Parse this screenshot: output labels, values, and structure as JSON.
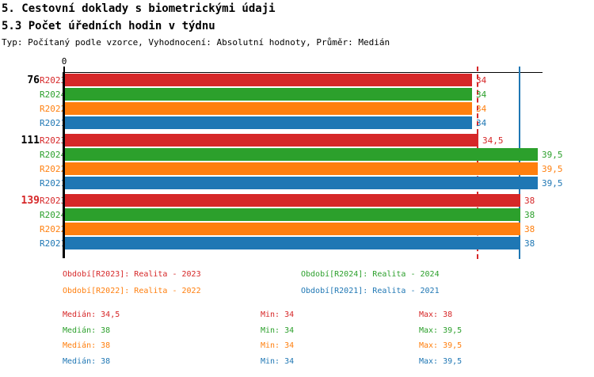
{
  "header": {
    "title": "5. Cestovní doklady s biometrickými údaji",
    "subtitle": "5.3 Počet úředních hodin v týdnu",
    "meta": "Typ: Počítaný podle vzorce, Vyhodnocení: Absolutní hodnoty, Průměr: Medián"
  },
  "chart_data": {
    "type": "bar",
    "orientation": "horizontal",
    "title": "5.3 Počet úředních hodin v týdnu",
    "xlabel": "",
    "ylabel": "",
    "xlim": [
      0,
      39.9
    ],
    "grid": false,
    "axis": {
      "origin_label": "0"
    },
    "series": [
      {
        "key": "R2023",
        "name": "Realita - 2023",
        "color": "#d62728"
      },
      {
        "key": "R2024",
        "name": "Realita - 2024",
        "color": "#2ca02c"
      },
      {
        "key": "R2022",
        "name": "Realita - 2022",
        "color": "#ff7f0e"
      },
      {
        "key": "R2021",
        "name": "Realita - 2021",
        "color": "#1f77b4"
      }
    ],
    "groups": [
      {
        "label": "76",
        "label_color": "#000000",
        "values": [
          34,
          34,
          34,
          34
        ]
      },
      {
        "label": "111",
        "label_color": "#000000",
        "values": [
          34.5,
          39.5,
          39.5,
          39.5
        ]
      },
      {
        "label": "139",
        "label_color": "#d62728",
        "values": [
          38,
          38,
          38,
          38
        ]
      }
    ],
    "reference_lines": [
      {
        "value": 34.5,
        "color": "#d62728",
        "style": "dashed"
      },
      {
        "value": 38,
        "color": "#1f77b4",
        "style": "solid"
      }
    ]
  },
  "legend": {
    "columns": [
      [
        {
          "label": "Období[R2023]: Realita - 2023",
          "color": "#d62728"
        },
        {
          "label": "Období[R2022]: Realita - 2022",
          "color": "#ff7f0e"
        }
      ],
      [
        {
          "label": "Období[R2024]: Realita - 2024",
          "color": "#2ca02c"
        },
        {
          "label": "Období[R2021]: Realita - 2021",
          "color": "#1f77b4"
        }
      ]
    ]
  },
  "stats": {
    "labels": {
      "median": "Medián",
      "min": "Min",
      "max": "Max"
    },
    "rows": [
      {
        "color": "#d62728",
        "median": "34,5",
        "min": "34",
        "max": "38"
      },
      {
        "color": "#2ca02c",
        "median": "38",
        "min": "34",
        "max": "39,5"
      },
      {
        "color": "#ff7f0e",
        "median": "38",
        "min": "34",
        "max": "39,5"
      },
      {
        "color": "#1f77b4",
        "median": "38",
        "min": "34",
        "max": "39,5"
      }
    ]
  }
}
